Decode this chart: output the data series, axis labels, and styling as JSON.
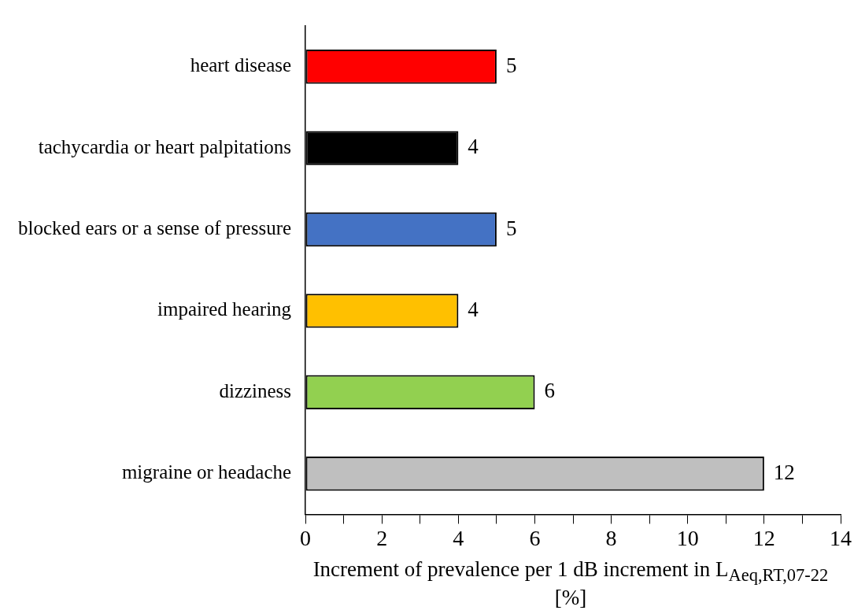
{
  "chart_data": {
    "type": "bar",
    "orientation": "horizontal",
    "xlabel": "Increment of prevalence per 1 dB increment in L$_{Aeq,RT,07-22}$ [%]",
    "categories": [
      "heart disease",
      "tachycardia or heart palpitations",
      "blocked ears or a sense of pressure",
      "impaired hearing",
      "dizziness",
      "migraine or headache"
    ],
    "values": [
      5,
      4,
      5,
      4,
      6,
      12
    ],
    "colors": [
      "#ff0000",
      "#000000",
      "#4472c4",
      "#ffc000",
      "#92d050",
      "#bfbfbf"
    ],
    "xlim": [
      0,
      14
    ],
    "xticks": [
      0,
      {
        "value": 1,
        "label": null
      },
      2,
      {
        "value": 3,
        "label": null
      },
      4,
      {
        "value": 5,
        "label": null
      },
      6,
      {
        "value": 7,
        "label": null
      },
      8,
      {
        "value": 9,
        "label": null
      },
      10,
      {
        "value": 11,
        "label": null
      },
      12,
      {
        "value": 13,
        "label": null
      },
      14
    ],
    "data_labels": true,
    "grid": false,
    "legend": false
  }
}
